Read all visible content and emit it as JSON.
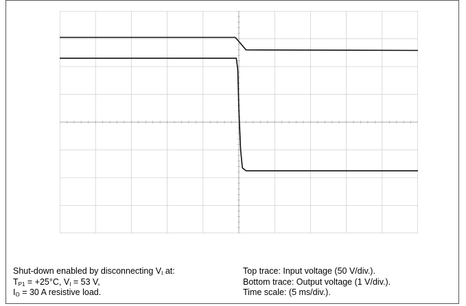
{
  "chart_data": {
    "type": "line",
    "grid": true,
    "x_divisions": 10,
    "y_divisions": 8,
    "series": [
      {
        "points": [
          [
            0,
            7.05
          ],
          [
            4.9,
            7.05
          ],
          [
            5.05,
            6.83
          ],
          [
            5.2,
            6.6
          ],
          [
            10,
            6.58
          ]
        ]
      },
      {
        "points": [
          [
            0,
            6.3
          ],
          [
            4.93,
            6.3
          ],
          [
            4.97,
            5.9
          ],
          [
            5.0,
            4.5
          ],
          [
            5.05,
            3.0
          ],
          [
            5.1,
            2.35
          ],
          [
            5.2,
            2.25
          ],
          [
            10,
            2.25
          ]
        ]
      }
    ],
    "markers": {
      "top_trace_level": "1",
      "bottom_trace_level": "2"
    }
  },
  "caption": {
    "left_line1_prefix": "Shut-down enabled by disconnecting V",
    "left_line1_sub": "I",
    "left_line1_suffix": " at:",
    "left_line2_t": "T",
    "left_line2_t_sub": "P1",
    "left_line2_mid": " = +25°C, V",
    "left_line2_v_sub": "I",
    "left_line2_end": " = 53 V,",
    "left_line3_i": "I",
    "left_line3_i_sub": "O",
    "left_line3_end": " = 30 A resistive load.",
    "right_line1": "Top trace: Input voltage (50 V/div.).",
    "right_line2": "Bottom trace: Output voltage (1 V/div.).",
    "right_line3": "Time scale: (5 ms/div.)."
  }
}
